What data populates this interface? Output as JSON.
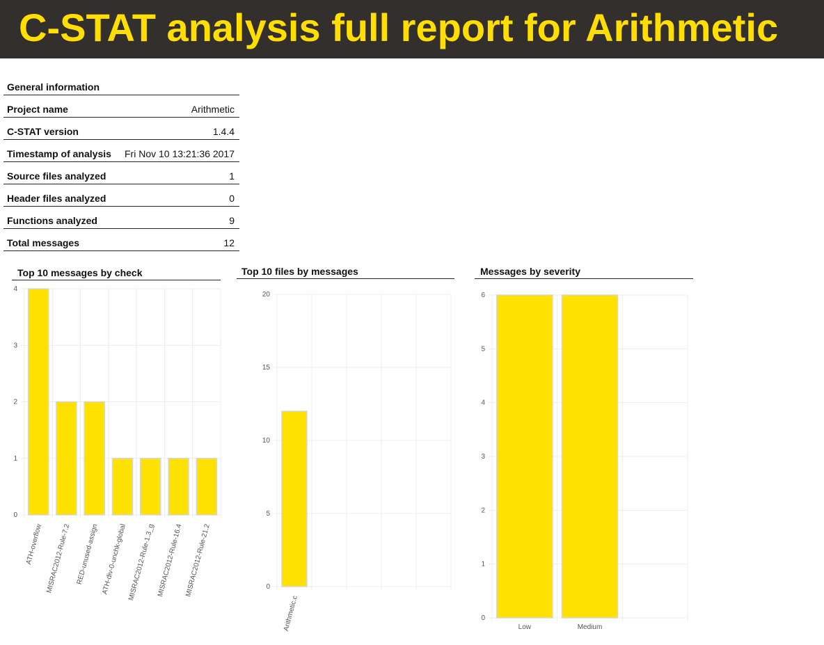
{
  "header": {
    "title": "C-STAT analysis full report for Arithmetic"
  },
  "general_info": {
    "heading": "General information",
    "rows": [
      {
        "key": "Project name",
        "value": "Arithmetic"
      },
      {
        "key": "C-STAT version",
        "value": "1.4.4"
      },
      {
        "key": "Timestamp of analysis",
        "value": "Fri Nov 10 13:21:36 2017"
      },
      {
        "key": "Source files analyzed",
        "value": "1"
      },
      {
        "key": "Header files analyzed",
        "value": "0"
      },
      {
        "key": "Functions analyzed",
        "value": "9"
      },
      {
        "key": "Total messages",
        "value": "12"
      }
    ]
  },
  "colors": {
    "bar": "#ffe100",
    "bar_border": "#d6d6d6",
    "grid": "#ececec",
    "axis": "#555555"
  },
  "chart_data": [
    {
      "type": "bar",
      "title": "Top 10 messages by check",
      "categories": [
        "ATH-overflow",
        "MISRAC2012-Rule-7.2",
        "RED-unused-assign",
        "ATH-div-0-unchk-global",
        "MISRAC2012-Rule-1.3_g",
        "MISRAC2012-Rule-16.4",
        "MISRAC2012-Rule-21.2"
      ],
      "values": [
        4,
        2,
        2,
        1,
        1,
        1,
        1
      ],
      "ylim": [
        0,
        4
      ],
      "yticks": [
        0,
        1,
        2,
        3,
        4
      ],
      "xlabel": "",
      "ylabel": "",
      "grid": true
    },
    {
      "type": "bar",
      "title": "Top 10 files by messages",
      "categories": [
        "Arithmetic.c"
      ],
      "values": [
        12
      ],
      "ylim": [
        0,
        20
      ],
      "yticks": [
        0,
        5,
        10,
        15,
        20
      ],
      "xlabel": "",
      "ylabel": "",
      "grid": true
    },
    {
      "type": "bar",
      "title": "Messages by severity",
      "categories": [
        "Low",
        "Medium"
      ],
      "values": [
        6,
        6
      ],
      "ylim": [
        0,
        6
      ],
      "yticks": [
        0,
        1,
        2,
        3,
        4,
        5,
        6
      ],
      "xlabel": "",
      "ylabel": "",
      "grid": true
    }
  ]
}
